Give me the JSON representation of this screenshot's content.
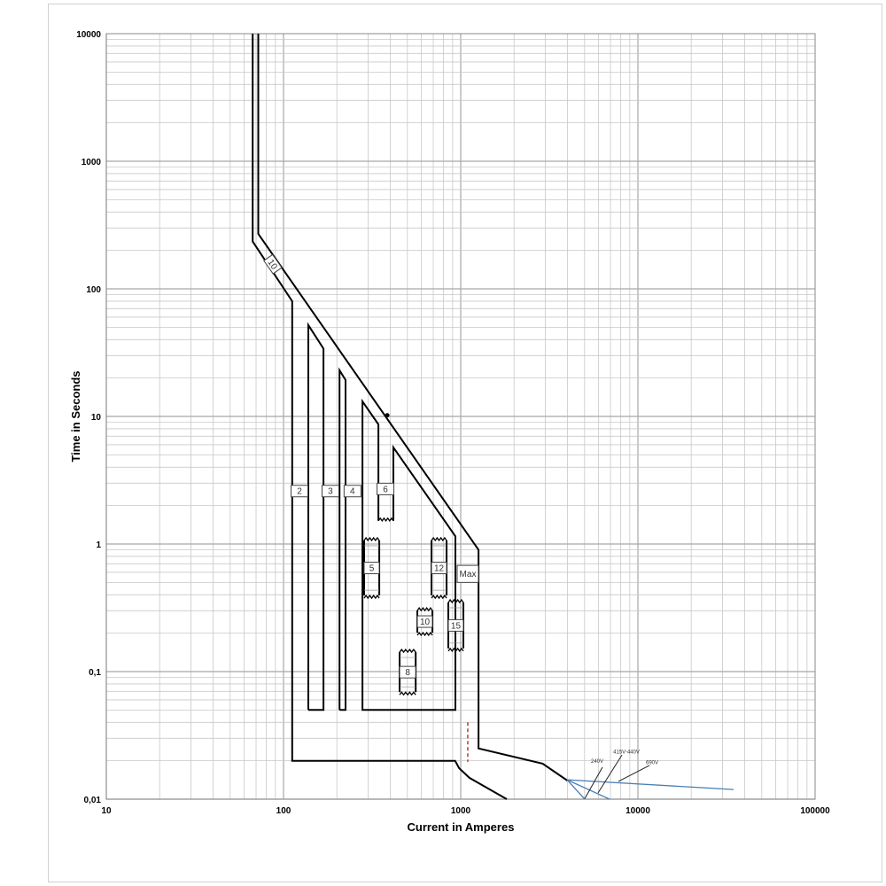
{
  "chart_data": {
    "type": "line",
    "title": "",
    "xlabel": "Current in Amperes",
    "ylabel": "Time in Seconds",
    "xscale": "log",
    "yscale": "log",
    "xlim": [
      10,
      100000
    ],
    "ylim": [
      0.01,
      10000
    ],
    "grid": true,
    "x_ticks": [
      "10",
      "100",
      "1000",
      "10000",
      "100000"
    ],
    "x_tick_values": [
      10,
      100,
      1000,
      10000,
      100000
    ],
    "y_ticks": [
      "0,01",
      "0,1",
      "1",
      "10",
      "100",
      "1000",
      "10000"
    ],
    "y_tick_values": [
      0.01,
      0.1,
      1,
      10,
      100,
      1000,
      10000
    ],
    "colors": {
      "curve": "#000000",
      "voltage": "#4a7fb5",
      "marker": "#c0392b",
      "grid": "#c8c8c8"
    },
    "curves": [
      {
        "id": "upper-envelope",
        "points": [
          [
            72,
            10000
          ],
          [
            72,
            270
          ],
          [
            1260,
            0.9
          ],
          [
            1260,
            0.025
          ],
          [
            2900,
            0.019
          ],
          [
            4000,
            0.014
          ]
        ]
      },
      {
        "id": "lower-envelope",
        "points": [
          [
            67,
            10000
          ],
          [
            67,
            235
          ],
          [
            112,
            80
          ],
          [
            112,
            0.02
          ],
          [
            930,
            0.02
          ],
          [
            980,
            0.0175
          ],
          [
            1120,
            0.0147
          ],
          [
            1820,
            0.01
          ]
        ]
      },
      {
        "id": "band-2",
        "points": [
          [
            138,
            0.05
          ],
          [
            138,
            52
          ],
          [
            168,
            34
          ],
          [
            168,
            0.05
          ],
          [
            138,
            0.05
          ]
        ]
      },
      {
        "id": "band-3",
        "points": [
          [
            207,
            0.05
          ],
          [
            207,
            23
          ],
          [
            224,
            19.3
          ],
          [
            224,
            0.05
          ],
          [
            207,
            0.05
          ]
        ]
      },
      {
        "id": "band-4",
        "points": [
          [
            343,
            1.52
          ],
          [
            343,
            8.66
          ],
          [
            279,
            13.1
          ],
          [
            279,
            0.05
          ],
          [
            933,
            0.05
          ],
          [
            933,
            1.15
          ],
          [
            417,
            5.71
          ],
          [
            417,
            1.52
          ]
        ]
      }
    ],
    "zigzag_boxes": [
      {
        "label": "5",
        "x": [
          285,
          347
        ],
        "y": [
          0.395,
          1.066
        ]
      },
      {
        "label": "12",
        "x": [
          684,
          832
        ],
        "y": [
          0.395,
          1.066
        ]
      },
      {
        "label": "10",
        "x": [
          569,
          692
        ],
        "y": [
          0.202,
          0.301
        ]
      },
      {
        "label": "15",
        "x": [
          851,
          1035
        ],
        "y": [
          0.152,
          0.348
        ]
      },
      {
        "label": "8",
        "x": [
          452,
          557
        ],
        "y": [
          0.069,
          0.142
        ]
      }
    ],
    "band_bottom_zigzag": {
      "x": [
        343,
        417
      ],
      "y": 1.52
    },
    "band_labels": [
      {
        "label": "2",
        "x": 123,
        "y": 2.6
      },
      {
        "label": "3",
        "x": 184,
        "y": 2.6
      },
      {
        "label": "4",
        "x": 245,
        "y": 2.6
      },
      {
        "label": "6",
        "x": 376,
        "y": 2.7
      }
    ],
    "max_box": {
      "label": "Max",
      "x": [
        955,
        1259
      ],
      "y": [
        0.5,
        0.68
      ]
    },
    "rotated_label": {
      "label": "10",
      "x": 87,
      "y": 156
    },
    "dot": {
      "x": 385,
      "y": 10.2
    },
    "red_dashed": {
      "x": 1096,
      "y": [
        0.0196,
        0.04
      ]
    },
    "voltage_lines": {
      "points": [
        [
          [
            3981,
            0.0142
          ],
          [
            5012,
            0.01
          ]
        ],
        [
          [
            3981,
            0.0142
          ],
          [
            6918,
            0.01
          ]
        ],
        [
          [
            3981,
            0.0142
          ],
          [
            34674,
            0.0119
          ]
        ]
      ],
      "labels": [
        {
          "label": "240V",
          "text_at": [
            5890,
            0.0193
          ],
          "line": [
            [
              6310,
              0.0178
            ],
            [
              5012,
              0.0101
            ]
          ]
        },
        {
          "label": "415V-440V",
          "text_at": [
            8610,
            0.0227
          ],
          "line": [
            [
              8128,
              0.0222
            ],
            [
              5957,
              0.0112
            ]
          ]
        },
        {
          "label": "690V",
          "text_at": [
            12023,
            0.0188
          ],
          "line": [
            [
              11614,
              0.0184
            ],
            [
              7762,
              0.0138
            ]
          ]
        }
      ]
    }
  }
}
